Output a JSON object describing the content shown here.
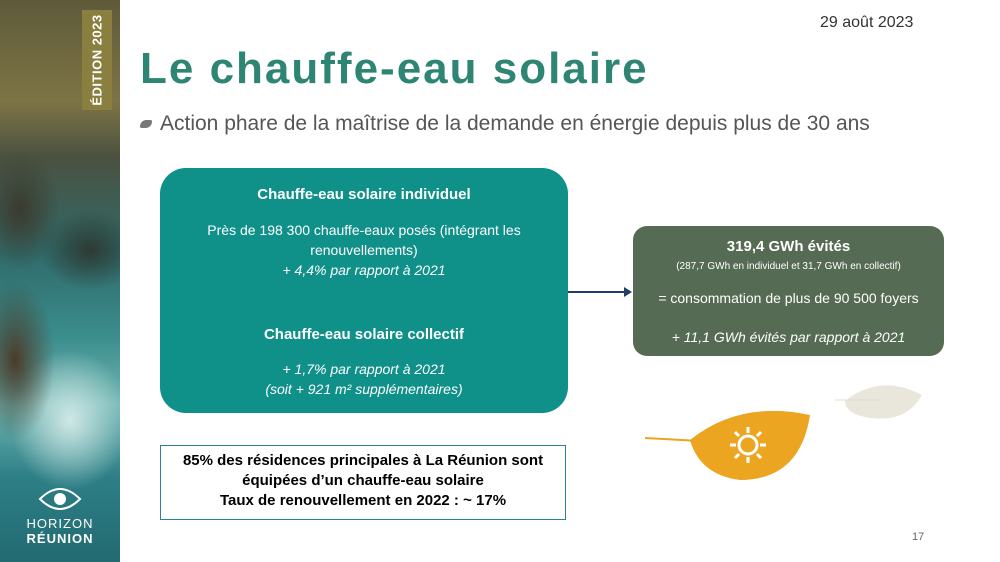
{
  "sidebar": {
    "edition": "ÉDITION 2023",
    "logo_line1": "HORIZON",
    "logo_line2": "RÉUNION"
  },
  "header": {
    "date": "29 août 2023",
    "title": "Le chauffe-eau solaire",
    "bullet": "Action phare de la maîtrise de la demande en énergie depuis plus de 30 ans"
  },
  "left_box": {
    "individual": {
      "title": "Chauffe-eau solaire individuel",
      "line1": "Près de 198 300 chauffe-eaux  posés (intégrant les renouvellements)",
      "line2": "+ 4,4% par rapport à 2021"
    },
    "collective": {
      "title": "Chauffe-eau solaire collectif",
      "line1": "+ 1,7% par rapport à 2021",
      "line2": "(soit + 921 m² supplémentaires)"
    }
  },
  "right_box": {
    "title": "319,4 GWh évités",
    "detail": "(287,7 GWh en individuel et 31,7 GWh en collectif)",
    "equivalent": "= consommation de plus de 90 500 foyers",
    "change": "+ 11,1 GWh évités par rapport à 2021"
  },
  "note_box": {
    "line1": "85% des résidences principales à La Réunion sont",
    "line2": "équipées d’un chauffe-eau solaire",
    "line3": "Taux de renouvellement en 2022 : ~ 17%"
  },
  "page_number": "17"
}
